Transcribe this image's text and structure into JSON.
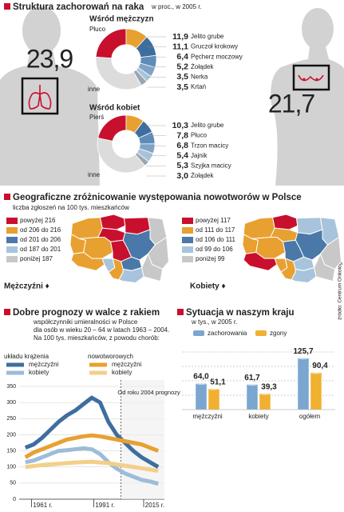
{
  "source": "źródło: Centrum Onkologii",
  "chart_data": [
    {
      "type": "donut",
      "title": "Struktura zachorowań na raka",
      "subtitle": "w proc., w 2005 r.",
      "name": "Wśród mężczyzn",
      "categories": [
        "Płuco",
        "Jelito grube",
        "Gruczoł krokowy",
        "Pęcherz moczowy",
        "Żołądek",
        "Nerka",
        "Krtań",
        "inne"
      ],
      "values": [
        23.9,
        11.9,
        11.1,
        6.4,
        5.2,
        3.5,
        3.5,
        34.5
      ],
      "value_labels": [
        "23,9",
        "11,9",
        "11,1",
        "6,4",
        "5,2",
        "3,5",
        "3,5",
        null
      ],
      "colors": [
        "#c8102e",
        "#e8a030",
        "#3e6e9e",
        "#5d8cb8",
        "#7fa3c6",
        "#a9c3db",
        "#9aa6b0",
        "#dcdcdc"
      ]
    },
    {
      "type": "donut",
      "name": "Wśród kobiet",
      "categories": [
        "Pierś",
        "Jelito grube",
        "Płuco",
        "Trzon macicy",
        "Jajnik",
        "Szyjka macicy",
        "Żołądek",
        "inne"
      ],
      "values": [
        21.7,
        10.3,
        7.8,
        6.8,
        5.4,
        5.3,
        3.0,
        39.7
      ],
      "value_labels": [
        "21,7",
        "10,3",
        "7,8",
        "6,8",
        "5,4",
        "5,3",
        "3,0",
        null
      ],
      "colors": [
        "#c8102e",
        "#e8a030",
        "#3e6e9e",
        "#5d8cb8",
        "#7fa3c6",
        "#a9c3db",
        "#9aa6b0",
        "#dcdcdc"
      ]
    },
    {
      "type": "map",
      "title": "Geograficzne zróżnicowanie występowania nowotworów w Polsce",
      "subtitle": "liczba zgłoszeń na 100 tys. mieszkańców",
      "label": "Mężczyźni ♦",
      "categories": [
        "powyżej 216",
        "od 206 do 216",
        "od 201 do 206",
        "od 187 do 201",
        "poniżej 187"
      ],
      "colors": [
        "#c8102e",
        "#e8a030",
        "#4a78a8",
        "#a8c4dc",
        "#c8c8c8"
      ],
      "regions": [
        1,
        0,
        0,
        4,
        0,
        1,
        1,
        2,
        0,
        4,
        1,
        3,
        1,
        2,
        3,
        4
      ]
    },
    {
      "type": "map",
      "label": "Kobiety ♦",
      "categories": [
        "powyżej 117",
        "od 111 do 117",
        "od 106 do 111",
        "od 99 do 106",
        "poniżej 99"
      ],
      "colors": [
        "#c8102e",
        "#e8a030",
        "#4a78a8",
        "#a8c4dc",
        "#c8c8c8"
      ],
      "regions": [
        1,
        0,
        3,
        3,
        1,
        1,
        1,
        2,
        2,
        4,
        0,
        1,
        1,
        3,
        3,
        4
      ]
    },
    {
      "type": "line",
      "title": "Dobre prognozy w walce z rakiem",
      "subtitle": [
        "współczynniki umieralności w Polsce",
        "dla osób w wieku 20 – 64 w latach  1963 – 2004.",
        "Na 100 tys. mieszkańców, z powodu chorób:"
      ],
      "groups": [
        "układu krążenia",
        "nowotworowych"
      ],
      "annotation": "Od roku 2004 prognozy",
      "forecast_from": 2004,
      "x": [
        1958,
        1962,
        1966,
        1970,
        1974,
        1978,
        1982,
        1986,
        1990,
        1994,
        1998,
        2002,
        2006,
        2010,
        2014,
        2018,
        2022
      ],
      "series": [
        {
          "name": "mężczyźni",
          "group": 0,
          "color": "#3e6e9e",
          "values": [
            160,
            170,
            190,
            215,
            240,
            260,
            275,
            295,
            315,
            300,
            240,
            200,
            175,
            150,
            130,
            115,
            100
          ]
        },
        {
          "name": "kobiety",
          "group": 0,
          "color": "#9dbcd8",
          "values": [
            115,
            120,
            130,
            140,
            150,
            152,
            155,
            158,
            155,
            140,
            115,
            95,
            80,
            70,
            60,
            55,
            48
          ]
        },
        {
          "name": "mężczyźni",
          "group": 1,
          "color": "#e8a030",
          "values": [
            130,
            145,
            155,
            165,
            175,
            185,
            190,
            195,
            198,
            195,
            190,
            185,
            180,
            175,
            170,
            160,
            150
          ]
        },
        {
          "name": "kobiety",
          "group": 1,
          "color": "#f3cf8a",
          "values": [
            100,
            103,
            106,
            108,
            110,
            112,
            114,
            115,
            116,
            114,
            112,
            108,
            104,
            100,
            96,
            92,
            88
          ]
        }
      ],
      "xlim": [
        1955,
        2025
      ],
      "ylim": [
        0,
        350
      ],
      "yticks": [
        0,
        50,
        100,
        150,
        200,
        250,
        300,
        350
      ],
      "xticks": [
        {
          "value": 1961,
          "label": "1961 r."
        },
        {
          "value": 1991,
          "label": "1991 r."
        },
        {
          "value": 2015,
          "label": "2015 r."
        }
      ],
      "grid": true
    },
    {
      "type": "bar",
      "title": "Sytuacja w naszym kraju",
      "subtitle": "w tys.,  w 2005 r.",
      "categories": [
        "mężczyźni",
        "kobiety",
        "ogółem"
      ],
      "series": [
        {
          "name": "zachorowania",
          "color": "#7aa6d0",
          "values": [
            64.0,
            61.7,
            125.7
          ],
          "value_labels": [
            "64,0",
            "61,7",
            "125,7"
          ]
        },
        {
          "name": "zgony",
          "color": "#f0b030",
          "values": [
            51.1,
            39.3,
            90.4
          ],
          "value_labels": [
            "51,1",
            "39,3",
            "90,4"
          ]
        }
      ],
      "ylim": [
        0,
        140
      ]
    }
  ]
}
